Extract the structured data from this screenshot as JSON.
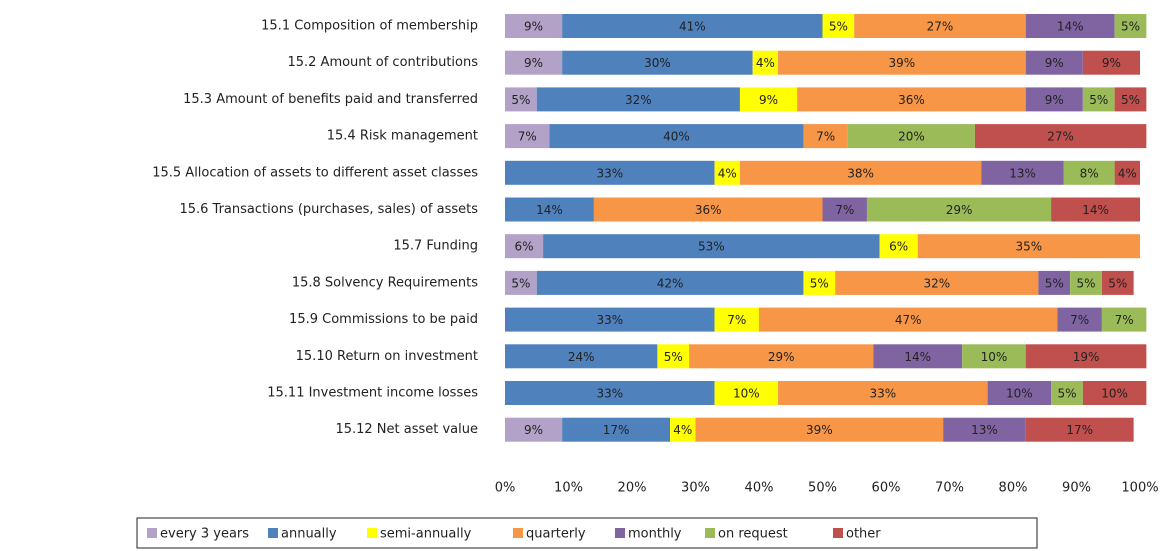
{
  "chart_data": {
    "type": "stacked_barh",
    "categories": [
      "15.1 Composition of membership",
      "15.2 Amount of contributions",
      "15.3 Amount of benefits paid and transferred",
      "15.4 Risk management",
      "15.5 Allocation of assets to different asset classes",
      "15.6 Transactions (purchases,  sales) of assets",
      "15.7 Funding",
      "15.8 Solvency Requirements",
      "15.9 Commissions to be paid",
      "15.10 Return on investment",
      "15.11 Investment income losses",
      "15.12 Net asset value"
    ],
    "series": [
      {
        "name": "every 3 years",
        "color": "#b3a2c7",
        "values": [
          9,
          9,
          5,
          7,
          null,
          null,
          6,
          5,
          null,
          null,
          null,
          9
        ],
        "value_labels": [
          "9%",
          "9%",
          "5%",
          "7%",
          null,
          null,
          "6%",
          "5%",
          null,
          null,
          null,
          "9%"
        ]
      },
      {
        "name": "annually",
        "color": "#4f81bd",
        "values": [
          41,
          30,
          32,
          40,
          33,
          14,
          53,
          42,
          33,
          24,
          33,
          17
        ],
        "value_labels": [
          "41%",
          "30%",
          "32%",
          "40%",
          "33%",
          "14%",
          "53%",
          "42%",
          "33%",
          "24%",
          "33%",
          "17%"
        ]
      },
      {
        "name": "semi-annually",
        "color": "#ffff00",
        "values": [
          5,
          4,
          9,
          null,
          4,
          null,
          6,
          5,
          7,
          5,
          10,
          4
        ],
        "value_labels": [
          "5%",
          "4%",
          "9%",
          null,
          "4%",
          null,
          "6%",
          "5%",
          "7%",
          "5%",
          "10%",
          "4%"
        ]
      },
      {
        "name": "quarterly",
        "color": "#f79646",
        "values": [
          27,
          39,
          36,
          7,
          38,
          36,
          35,
          32,
          47,
          29,
          33,
          39
        ],
        "value_labels": [
          "27%",
          "39%",
          "36%",
          "7%",
          "38%",
          "36%",
          "35%",
          "32%",
          "47%",
          "29%",
          "33%",
          "39%"
        ]
      },
      {
        "name": "monthly",
        "color": "#8064a2",
        "values": [
          14,
          9,
          9,
          null,
          13,
          7,
          null,
          5,
          7,
          14,
          10,
          13
        ],
        "value_labels": [
          "14%",
          "9%",
          "9%",
          null,
          "13%",
          "7%",
          null,
          "5%",
          "7%",
          "14%",
          "10%",
          "13%"
        ]
      },
      {
        "name": "on request",
        "color": "#9bbb59",
        "values": [
          5,
          null,
          5,
          20,
          8,
          29,
          null,
          5,
          7,
          10,
          5,
          null
        ],
        "value_labels": [
          "5%",
          null,
          "5%",
          "20%",
          "8%",
          "29%",
          null,
          "5%",
          "7%",
          "10%",
          "5%",
          null
        ]
      },
      {
        "name": "other",
        "color": "#c0504d",
        "values": [
          null,
          9,
          5,
          27,
          4,
          14,
          null,
          5,
          null,
          19,
          10,
          17
        ],
        "value_labels": [
          null,
          "9%",
          "5%",
          "27%",
          "4%",
          "14%",
          null,
          "5%",
          null,
          "19%",
          "10%",
          "17%"
        ]
      }
    ],
    "xlim": [
      0,
      100
    ],
    "xticks": [
      {
        "value": 0,
        "label": "0%"
      },
      {
        "value": 10,
        "label": "10%"
      },
      {
        "value": 20,
        "label": "20%"
      },
      {
        "value": 30,
        "label": "30%"
      },
      {
        "value": 40,
        "label": "40%"
      },
      {
        "value": 50,
        "label": "50%"
      },
      {
        "value": 60,
        "label": "60%"
      },
      {
        "value": 70,
        "label": "70%"
      },
      {
        "value": 80,
        "label": "80%"
      },
      {
        "value": 90,
        "label": "90%"
      },
      {
        "value": 100,
        "label": "100%"
      }
    ],
    "legend": "bottom"
  }
}
